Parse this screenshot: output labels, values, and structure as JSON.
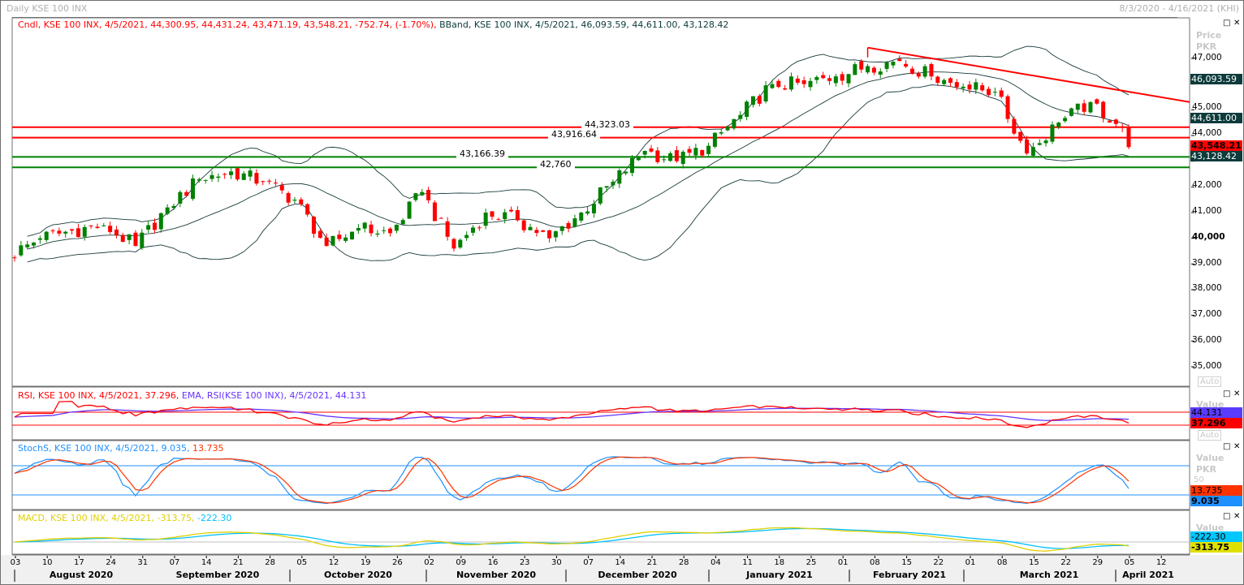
{
  "window": {
    "title": "Daily KSE 100 INX",
    "range": "8/3/2020 - 4/16/2021 (KHI)"
  },
  "legend": {
    "cndl": "Cndl, KSE 100 INX, 4/5/2021, 44,300.95, 44,431.24, 43,471.19, 43,548.21, -752.74, (-1.70%),",
    "bband": "BBand, KSE 100 INX, 4/5/2021, 46,093.59, 44,611.00, 43,128.42"
  },
  "price_axis": {
    "title": "Price",
    "unit": "PKR",
    "auto": "Auto",
    "ticks": [
      "47,000",
      "45,000",
      "44,000",
      "42,000",
      "41,000",
      "40,000",
      "39,000",
      "38,000",
      "37,000",
      "36,000",
      "35,000"
    ]
  },
  "tags": {
    "bb_upper": "46,093.59",
    "bb_mid": "44,611.00",
    "close": "43,548.21",
    "bb_lower": "43,128.42",
    "colors": {
      "close": "#ff0000",
      "band": "#0d3b3b"
    }
  },
  "levels": [
    {
      "label": "44,323.03",
      "value": 44323.03,
      "color": "#ff0000"
    },
    {
      "label": "43,916.64",
      "value": 43916.64,
      "color": "#ff0000"
    },
    {
      "label": "43,166.39",
      "value": 43166.39,
      "color": "#008000"
    },
    {
      "label": "42,760",
      "value": 42760,
      "color": "#008000"
    }
  ],
  "rsi": {
    "legend_rsi": "RSI, KSE 100 INX, 4/5/2021, 37.296,",
    "legend_ema": "EMA, RSI(KSE 100 INX), 4/5/2021, 44.131",
    "axis_title": "Value",
    "tag_ema": "44.131",
    "tag_rsi": "37.296",
    "auto": "Auto"
  },
  "stoch": {
    "legend_k": "StochS, KSE 100 INX, 4/5/2021, 9.035,",
    "legend_d": "13.735",
    "axis_title": "Value",
    "unit": "PKR",
    "tick_50": "50",
    "tag_d": "13.735",
    "tag_k": "9.035"
  },
  "macd": {
    "legend_macd": "MACD, KSE 100 INX, 4/5/2021, -313.75,",
    "legend_signal": "-222.30",
    "axis_title": "Value",
    "tag_signal": "-222.30",
    "tag_macd": "-313.75"
  },
  "time_axis": {
    "days": [
      "03",
      "10",
      "17",
      "24",
      "31",
      "07",
      "14",
      "21",
      "28",
      "05",
      "12",
      "19",
      "26",
      "02",
      "09",
      "16",
      "23",
      "30",
      "07",
      "14",
      "21",
      "28",
      "04",
      "11",
      "18",
      "25",
      "01",
      "08",
      "15",
      "22",
      "01",
      "08",
      "15",
      "22",
      "29",
      "05",
      "12"
    ],
    "months": [
      "August 2020",
      "September 2020",
      "October 2020",
      "November 2020",
      "December 2020",
      "January 2021",
      "February 2021",
      "March 2021",
      "April 2021"
    ]
  },
  "chart_data": {
    "type": "candlestick",
    "title": "Daily KSE 100 INX",
    "ylabel": "Price PKR",
    "ylim": [
      34600,
      48600
    ],
    "start_close": 39300,
    "weekly_closes": [
      40000,
      40300,
      40500,
      39700,
      41200,
      42300,
      42600,
      42200,
      41500,
      39700,
      40400,
      40200,
      41800,
      39600,
      41000,
      40700,
      40000,
      41000,
      42200,
      43400,
      43000,
      43600,
      44800,
      46000,
      46000,
      46300,
      46700,
      46900,
      46300,
      45900,
      45700,
      43300,
      44500,
      45300,
      44300
    ],
    "last_candle": {
      "date": "4/5/2021",
      "open": 44300.95,
      "high": 44431.24,
      "low": 43471.19,
      "close": 43548.21,
      "change": -752.74,
      "change_pct": -1.7
    },
    "bbands_last": {
      "upper": 46093.59,
      "middle": 44611.0,
      "lower": 43128.42
    },
    "trendline": {
      "start_day": 134,
      "start_price": 47420,
      "end_day": 184.6,
      "end_price": 45300
    },
    "colors": {
      "up": "#008000",
      "down": "#ff0000",
      "band": "#1a3a3a",
      "rsi": "#ff0000",
      "rsi_ema": "#6633ff",
      "stoch_k": "#1e90ff",
      "stoch_d": "#ff3300",
      "macd": "#e0d000",
      "signal": "#00c0ff"
    }
  }
}
